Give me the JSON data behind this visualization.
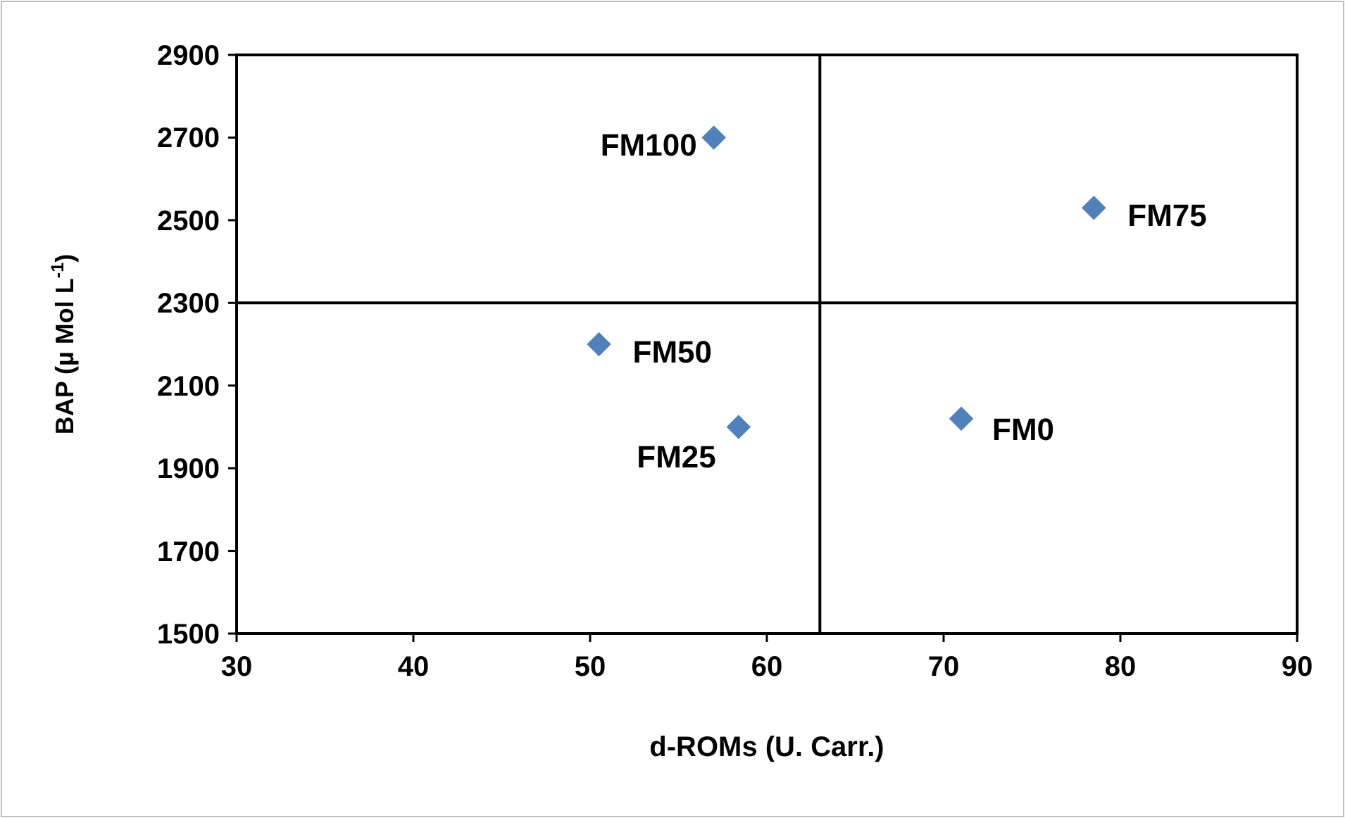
{
  "chart_data": {
    "type": "scatter",
    "xlabel": "d-ROMs (U. Carr.)",
    "ylabel": "BAP (µ Mol L$^{-1}$)",
    "x": [
      57.0,
      78.5,
      50.5,
      58.4,
      71.0
    ],
    "series": [
      {
        "color": "#4f81bd",
        "values": [
          2700,
          2530,
          2200,
          2000,
          2020
        ]
      }
    ],
    "xlim": [
      30,
      90
    ],
    "xticks": [
      30,
      40,
      50,
      60,
      70,
      80,
      90
    ],
    "ylim": [
      1500,
      2900
    ],
    "yticks": [
      1500,
      1700,
      1900,
      2100,
      2300,
      2500,
      2700,
      2900
    ],
    "ref_lines": [
      {
        "axis": "x",
        "value": 63,
        "color": "#000000"
      },
      {
        "axis": "y",
        "value": 2300,
        "color": "#000000"
      }
    ],
    "annotations": [
      {
        "text": "FM100",
        "x": 57.0,
        "y": 2700
      },
      {
        "text": "FM75",
        "x": 78.5,
        "y": 2530
      },
      {
        "text": "FM50",
        "x": 50.5,
        "y": 2200
      },
      {
        "text": "FM25",
        "x": 58.4,
        "y": 2000
      },
      {
        "text": "FM0",
        "x": 71.0,
        "y": 2020
      }
    ],
    "grid": false,
    "marker": "diamond"
  }
}
